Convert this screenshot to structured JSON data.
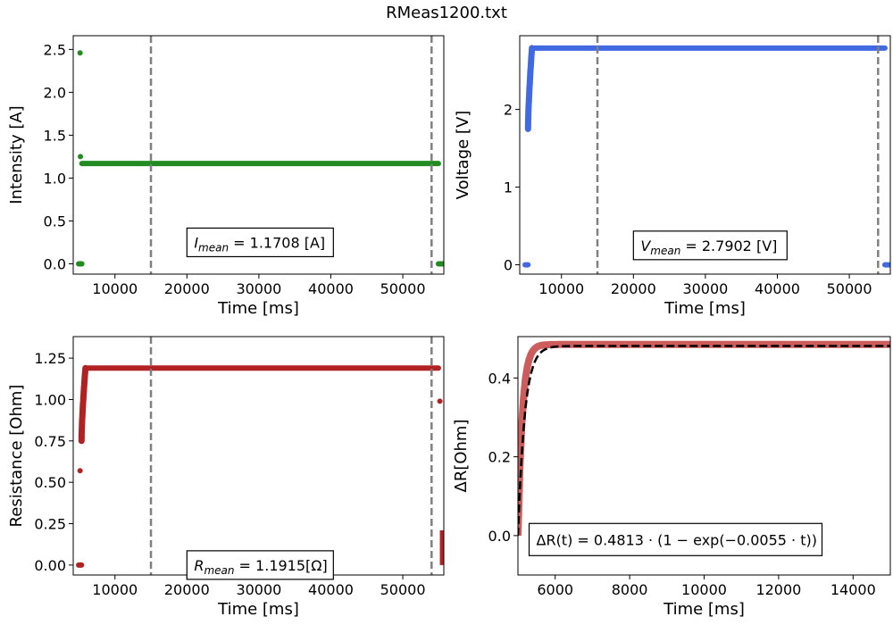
{
  "figure_title": "RMeas1200.txt",
  "chart_data": [
    {
      "id": "intensity",
      "type": "scatter",
      "xlabel": "Time [ms]",
      "ylabel": "Intensity [A]",
      "xlim": [
        4200,
        55700
      ],
      "ylim": [
        -0.12,
        2.66
      ],
      "xticks": [
        10000,
        20000,
        30000,
        40000,
        50000
      ],
      "yticks": [
        0.0,
        0.5,
        1.0,
        1.5,
        2.0,
        2.5
      ],
      "ytick_labels": [
        "0.0",
        "0.5",
        "1.0",
        "1.5",
        "2.0",
        "2.5"
      ],
      "color": "#228b22",
      "vlines": [
        15000,
        54000
      ],
      "segments": [
        {
          "x0": 4950,
          "x1": 5400,
          "y": 0.0
        },
        {
          "x0": 5400,
          "x1": 54950,
          "y": 1.17
        },
        {
          "x0": 54950,
          "x1": 55600,
          "y": 0.0
        }
      ],
      "points": [
        [
          5150,
          2.46
        ],
        [
          5200,
          1.25
        ]
      ],
      "annotation": {
        "sym": "I",
        "sub": "mean",
        "text": "= 1.1708 [A]",
        "x": 20000,
        "y": 0.25
      }
    },
    {
      "id": "voltage",
      "type": "scatter",
      "xlabel": "Time [ms]",
      "ylabel": "Voltage [V]",
      "xlim": [
        4200,
        55700
      ],
      "ylim": [
        -0.12,
        2.95
      ],
      "xticks": [
        10000,
        20000,
        30000,
        40000,
        50000
      ],
      "yticks": [
        0,
        1,
        2
      ],
      "ytick_labels": [
        "0",
        "1",
        "2"
      ],
      "color": "#4169e1",
      "vlines": [
        15000,
        54000
      ],
      "segments": [
        {
          "x0": 4950,
          "x1": 5350,
          "y": 0.0
        },
        {
          "x0": 5900,
          "x1": 54950,
          "y": 2.79
        },
        {
          "x0": 54950,
          "x1": 55600,
          "y": 0.0
        }
      ],
      "rise": {
        "x0": 5350,
        "x1": 5900,
        "y0": 1.75,
        "y1": 2.79
      },
      "annotation": {
        "sym": "V",
        "sub": "mean",
        "text": "= 2.7902 [V]",
        "x": 20000,
        "y": 0.25
      }
    },
    {
      "id": "resistance",
      "type": "scatter",
      "xlabel": "Time [ms]",
      "ylabel": "Resistance [Ohm]",
      "xlim": [
        4200,
        55700
      ],
      "ylim": [
        -0.06,
        1.38
      ],
      "xticks": [
        10000,
        20000,
        30000,
        40000,
        50000
      ],
      "yticks": [
        0.0,
        0.25,
        0.5,
        0.75,
        1.0,
        1.25
      ],
      "ytick_labels": [
        "0.00",
        "0.25",
        "0.50",
        "0.75",
        "1.00",
        "1.25"
      ],
      "color": "#b22222",
      "vlines": [
        15000,
        54000
      ],
      "segments": [
        {
          "x0": 4950,
          "x1": 5350,
          "y": 0.0
        },
        {
          "x0": 5900,
          "x1": 54950,
          "y": 1.19
        }
      ],
      "rise": {
        "x0": 5350,
        "x1": 5900,
        "y0": 0.75,
        "y1": 1.19
      },
      "points": [
        [
          5150,
          0.57
        ],
        [
          55150,
          0.99
        ]
      ],
      "tail": {
        "x0": 55150,
        "x1": 55650,
        "y0": 0.0,
        "y1": 0.21
      },
      "annotation": {
        "sym": "R",
        "sub": "mean",
        "text": "= 1.1915[Ω]",
        "x": 20000,
        "y": 0.0
      }
    },
    {
      "id": "delta-r",
      "type": "line",
      "xlabel": "Time [ms]",
      "ylabel": "ΔR[Ohm]",
      "xlim": [
        5000,
        15000
      ],
      "ylim": [
        -0.1,
        0.505
      ],
      "xticks": [
        6000,
        8000,
        10000,
        12000,
        14000
      ],
      "yticks": [
        0.0,
        0.2,
        0.4
      ],
      "ytick_labels": [
        "0.0",
        "0.2",
        "0.4"
      ],
      "color": "#cd5c5c",
      "data_series": {
        "x0": 5000,
        "x1": 15000,
        "amp": 0.485,
        "rate": 0.0085
      },
      "fit": {
        "x0": 5000,
        "x1": 15000,
        "amp": 0.4813,
        "rate": 0.0055
      },
      "annotation": {
        "text": "ΔR(t) = 0.4813 · (1 − exp(−0.0055 · t))",
        "x": 5300,
        "y": -0.01
      }
    }
  ]
}
